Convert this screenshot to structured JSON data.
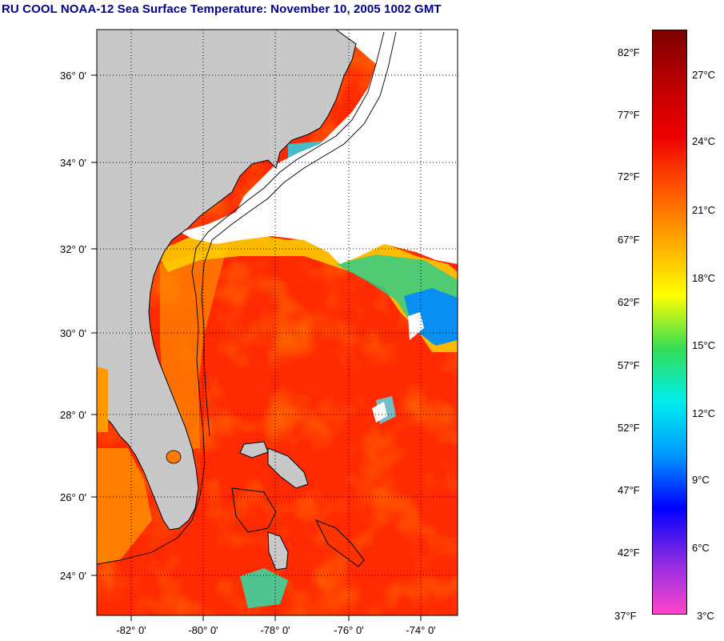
{
  "title": "RU COOL  NOAA-12  Sea Surface Temperature:  November 10, 2005 1002 GMT",
  "map": {
    "lon_range": [
      -83,
      -73
    ],
    "lat_range": [
      23,
      37
    ],
    "lat_labels": [
      "24° 0'",
      "26° 0'",
      "28° 0'",
      "30° 0'",
      "32° 0'",
      "34° 0'",
      "36° 0'"
    ],
    "lat_values": [
      24,
      26,
      28,
      30,
      32,
      34,
      36
    ],
    "lon_labels": [
      "-82° 0'",
      "-80° 0'",
      "-78° 0'",
      "-76° 0'",
      "-74° 0'"
    ],
    "lon_values": [
      -82,
      -80,
      -78,
      -76,
      -74
    ],
    "grid": "dotted",
    "colors": {
      "land": "#c8c8c8",
      "cloud": "#ffffff",
      "warm_water": "#ff2a00",
      "coastline": "#000000"
    }
  },
  "colorbar": {
    "fahrenheit": [
      "82°F",
      "77°F",
      "72°F",
      "67°F",
      "62°F",
      "57°F",
      "52°F",
      "47°F",
      "42°F",
      "37°F"
    ],
    "fahrenheit_values": [
      82,
      77,
      72,
      67,
      62,
      57,
      52,
      47,
      42,
      37
    ],
    "celsius": [
      "27°C",
      "24°C",
      "21°C",
      "18°C",
      "15°C",
      "12°C",
      "9°C",
      "6°C",
      "3°C"
    ],
    "celsius_values": [
      27,
      24,
      21,
      18,
      15,
      12,
      9,
      6,
      3
    ],
    "range_f": [
      37,
      84
    ],
    "colors": [
      "#ff44cc",
      "#8a2be2",
      "#0000ff",
      "#0099ff",
      "#00eeee",
      "#33dd55",
      "#ffff00",
      "#ffaa00",
      "#ff5500",
      "#ee0000",
      "#bb0000",
      "#7a0000"
    ]
  }
}
